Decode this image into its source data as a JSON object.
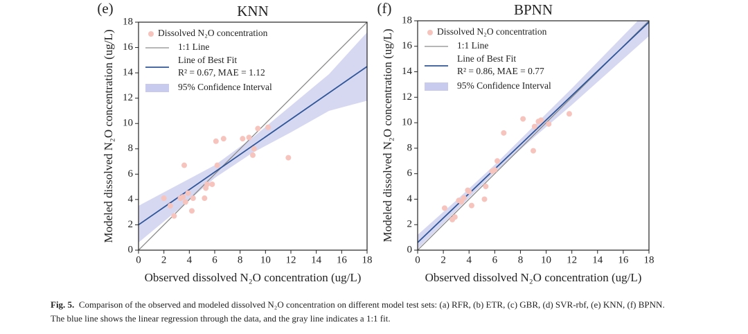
{
  "chart_data": [
    {
      "type": "scatter",
      "panel_label": "(e)",
      "title": "KNN",
      "x_label": "Observed dissolved N₂O concentration (ug/L)",
      "y_label": "Modeled dissolved N₂O concentration (ug/L)",
      "xlim": [
        0,
        18
      ],
      "ylim": [
        0,
        18
      ],
      "xticks": [
        0,
        2,
        4,
        6,
        8,
        10,
        12,
        14,
        16,
        18
      ],
      "yticks": [
        0,
        2,
        4,
        6,
        8,
        10,
        12,
        14,
        16,
        18
      ],
      "series": [
        {
          "name": "Dissolved N₂O concentration",
          "kind": "points",
          "color": "#f7c3bd",
          "x": [
            2.0,
            2.5,
            2.8,
            3.3,
            3.5,
            3.6,
            3.7,
            3.9,
            4.2,
            4.3,
            5.2,
            5.3,
            5.4,
            5.8,
            6.1,
            6.2,
            6.7,
            8.2,
            8.7,
            9.0,
            9.1,
            9.4,
            10.2,
            11.8
          ],
          "values": [
            4.1,
            3.5,
            2.7,
            4.1,
            4.2,
            6.7,
            3.8,
            4.5,
            3.1,
            4.1,
            4.1,
            4.9,
            5.2,
            5.2,
            8.6,
            6.7,
            8.8,
            8.8,
            8.9,
            7.5,
            8.0,
            9.6,
            9.7,
            7.3
          ]
        },
        {
          "name": "1:1 Line",
          "kind": "line",
          "color": "#8a8a8a",
          "x": [
            0,
            18
          ],
          "values": [
            0,
            18
          ]
        },
        {
          "name": "Line of Best Fit",
          "kind": "line",
          "color": "#2f5597",
          "x": [
            0,
            18
          ],
          "values": [
            2.0,
            14.5
          ],
          "annotation": "R² = 0.67, MAE = 1.12"
        },
        {
          "name": "95% Confidence Interval",
          "kind": "band",
          "color": "#c8cbee",
          "x": [
            0,
            3,
            6,
            9,
            12,
            15,
            18
          ],
          "lower": [
            0.6,
            3.1,
            5.7,
            7.7,
            9.3,
            11.0,
            11.8
          ],
          "values": [
            3.5,
            5.1,
            6.7,
            8.9,
            11.4,
            13.9,
            17.2
          ]
        }
      ]
    },
    {
      "type": "scatter",
      "panel_label": "(f)",
      "title": "BPNN",
      "x_label": "Observed dissolved N₂O concentration (ug/L)",
      "y_label": "Modeled dissolved N₂O concentration (ug/L)",
      "xlim": [
        0,
        18
      ],
      "ylim": [
        0,
        18
      ],
      "xticks": [
        0,
        2,
        4,
        6,
        8,
        10,
        12,
        14,
        16,
        18
      ],
      "yticks": [
        0,
        2,
        4,
        6,
        8,
        10,
        12,
        14,
        16,
        18
      ],
      "series": [
        {
          "name": "Dissolved N₂O concentration",
          "kind": "points",
          "color": "#f7c3bd",
          "x": [
            2.1,
            2.7,
            2.9,
            3.2,
            3.4,
            3.6,
            3.9,
            4.0,
            4.2,
            5.2,
            5.3,
            5.8,
            6.0,
            6.2,
            6.7,
            8.2,
            9.0,
            9.1,
            9.4,
            9.6,
            10.2,
            11.8
          ],
          "values": [
            3.3,
            2.4,
            2.6,
            3.9,
            3.8,
            4.1,
            4.7,
            4.6,
            3.5,
            4.0,
            5.0,
            6.2,
            6.3,
            7.0,
            9.2,
            10.3,
            7.8,
            9.7,
            10.1,
            10.2,
            9.9,
            10.7
          ]
        },
        {
          "name": "1:1 Line",
          "kind": "line",
          "color": "#8a8a8a",
          "x": [
            0,
            18
          ],
          "values": [
            0,
            18
          ]
        },
        {
          "name": "Line of Best Fit",
          "kind": "line",
          "color": "#2f5597",
          "x": [
            0,
            18
          ],
          "values": [
            0.6,
            17.9
          ],
          "annotation": "R² = 0.86, MAE = 0.77"
        },
        {
          "name": "95% Confidence Interval",
          "kind": "band",
          "color": "#c8cbee",
          "x": [
            0,
            3,
            6,
            9,
            12,
            15,
            18
          ],
          "lower": [
            0.1,
            3.1,
            6.1,
            8.8,
            11.4,
            14.1,
            16.8
          ],
          "values": [
            1.2,
            3.9,
            6.7,
            9.7,
            12.7,
            15.8,
            18.9
          ]
        }
      ]
    }
  ],
  "caption": {
    "label": "Fig. 5.",
    "lines": [
      "Comparison of the observed and modeled dissolved N₂O concentration on different model test sets: (a) RFR, (b) ETR, (c) GBR, (d) SVR-rbf, (e) KNN, (f) BPNN.",
      "The blue line shows the linear regression through the data, and the gray line indicates a 1:1 fit."
    ]
  }
}
